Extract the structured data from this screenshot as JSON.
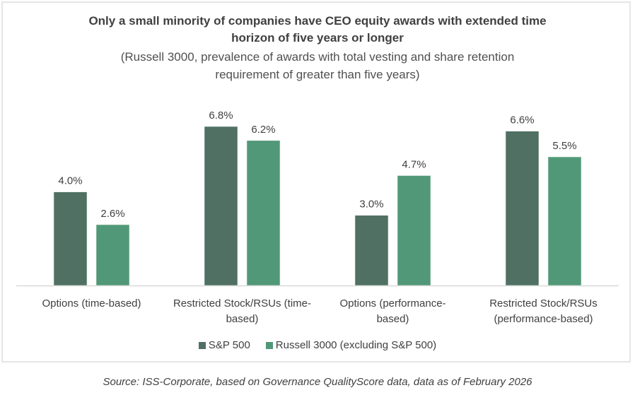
{
  "chart_data": {
    "type": "bar",
    "title": "Only a small minority of companies have CEO equity awards with extended time horizon of five years or longer",
    "title_lines": [
      "Only a small minority of companies have CEO equity awards with extended time",
      "horizon of five years or longer"
    ],
    "subtitle": "(Russell 3000, prevalence of awards with total vesting and share retention requirement of greater than five years)",
    "subtitle_lines": [
      "(Russell 3000, prevalence of awards with total vesting and share retention",
      "requirement of greater than five years)"
    ],
    "categories": [
      "Options (time-based)",
      "Restricted Stock/RSUs (time-based)",
      "Options (performance-based)",
      "Restricted Stock/RSUs (performance-based)"
    ],
    "category_label_lines": [
      [
        "Options (time-based)"
      ],
      [
        "Restricted Stock/RSUs (time-",
        "based)"
      ],
      [
        "Options (performance-",
        "based)"
      ],
      [
        "Restricted Stock/RSUs",
        "(performance-based)"
      ]
    ],
    "series": [
      {
        "name": "S&P 500",
        "color": "#4f7063",
        "values": [
          4.0,
          6.8,
          3.0,
          6.6
        ],
        "labels": [
          "4.0%",
          "6.8%",
          "3.0%",
          "6.6%"
        ]
      },
      {
        "name": "Russell 3000 (excluding S&P 500)",
        "color": "#519878",
        "values": [
          2.6,
          6.2,
          4.7,
          5.5
        ],
        "labels": [
          "2.6%",
          "6.2%",
          "4.7%",
          "5.5%"
        ]
      }
    ],
    "xlabel": "",
    "ylabel": "",
    "ylim": [
      0,
      7.5
    ],
    "unit": "%",
    "grid": false,
    "y_axis_visible": false,
    "legend_position": "bottom"
  },
  "source": "Source: ISS-Corporate, based on Governance QualityScore data, data as of February 2026"
}
